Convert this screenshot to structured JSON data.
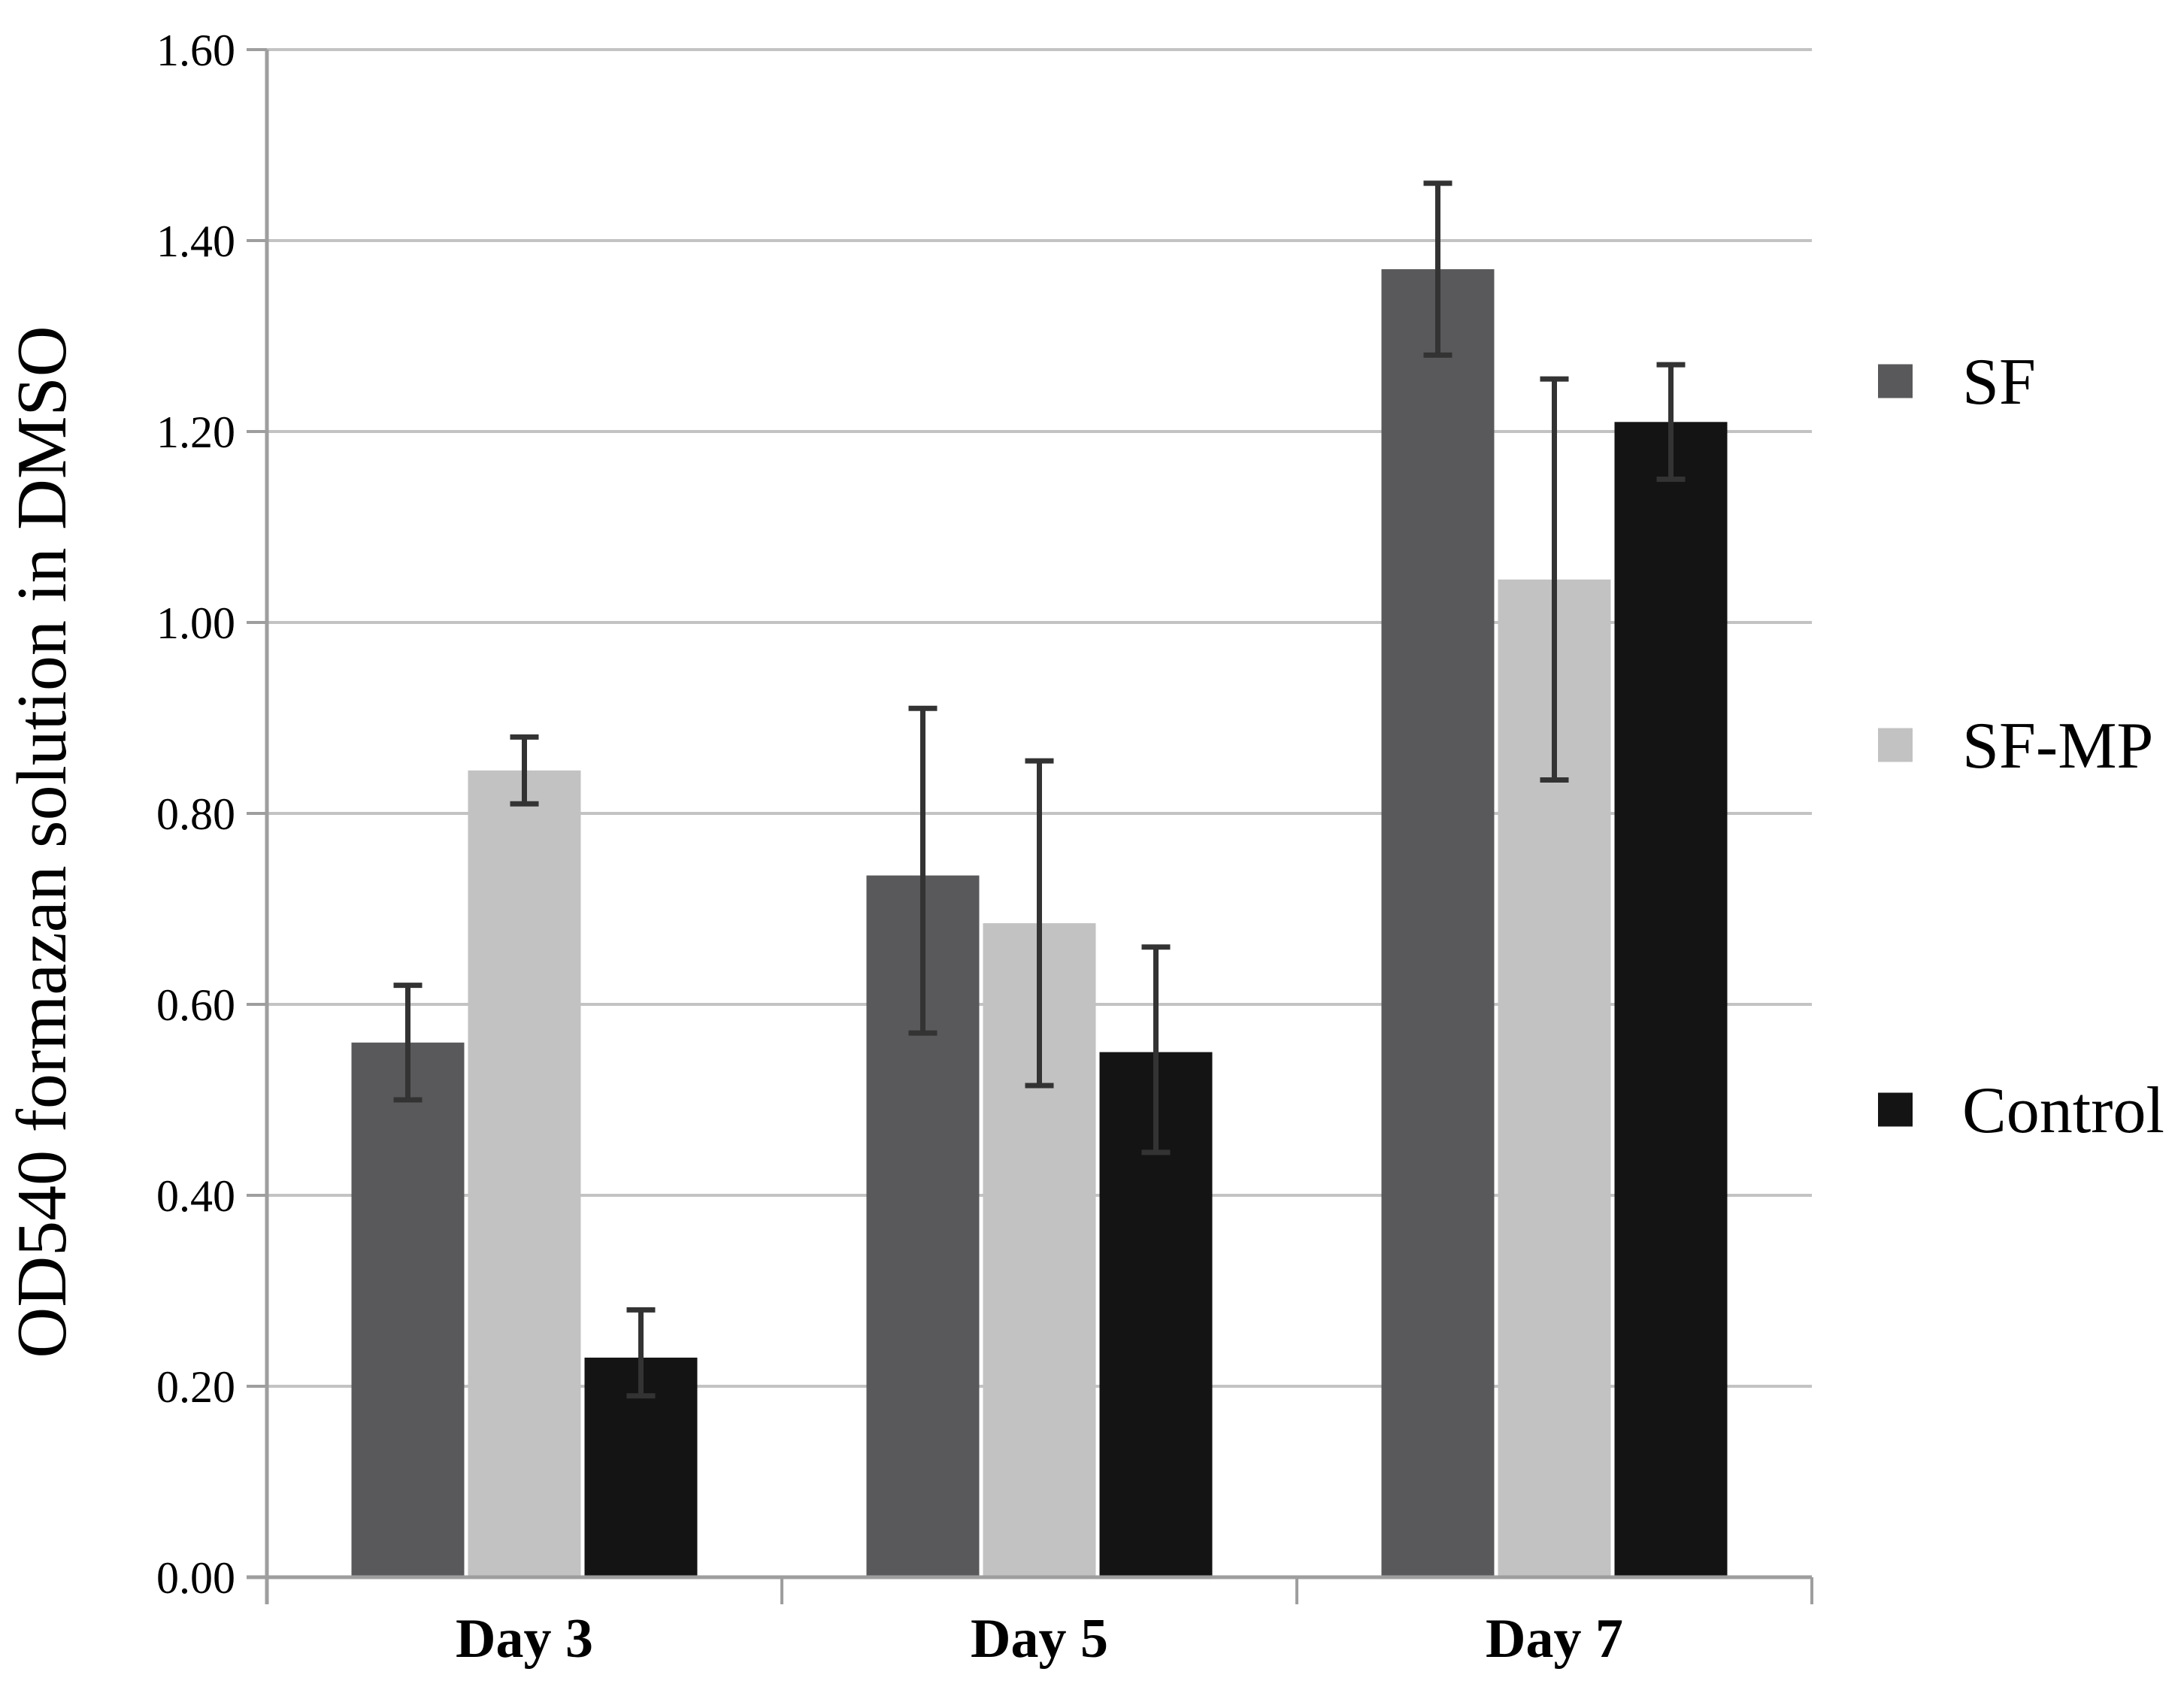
{
  "figure": {
    "background_color": "#ffffff",
    "text_color": "#000000"
  },
  "chart_data": {
    "type": "bar",
    "title": "",
    "xlabel": "",
    "ylabel": "OD540 formazan solution in DMSO",
    "categories": [
      "Day 3",
      "Day 5",
      "Day 7"
    ],
    "series": [
      {
        "name": "SF",
        "color": "#59595b",
        "values": [
          0.56,
          0.735,
          1.37
        ],
        "error_low": [
          0.5,
          0.57,
          1.28
        ],
        "error_high": [
          0.62,
          0.91,
          1.46
        ]
      },
      {
        "name": "SF-MP",
        "color": "#c2c2c2",
        "values": [
          0.845,
          0.685,
          1.045
        ],
        "error_low": [
          0.81,
          0.515,
          0.835
        ],
        "error_high": [
          0.88,
          0.855,
          1.255
        ]
      },
      {
        "name": "Control",
        "color": "#141414",
        "values": [
          0.23,
          0.55,
          1.21
        ],
        "error_low": [
          0.19,
          0.445,
          1.15
        ],
        "error_high": [
          0.28,
          0.66,
          1.27
        ]
      }
    ],
    "ylim": [
      0.0,
      1.6
    ],
    "ytick_step": 0.2,
    "ytick_labels": [
      "0.00",
      "0.20",
      "0.40",
      "0.60",
      "0.80",
      "1.00",
      "1.20",
      "1.40",
      "1.60"
    ],
    "grid": true,
    "gridline_color": "#c3c3c3",
    "axis_color": "#9e9e9e",
    "error_bar_color": "#333333",
    "legend_position": "right"
  }
}
